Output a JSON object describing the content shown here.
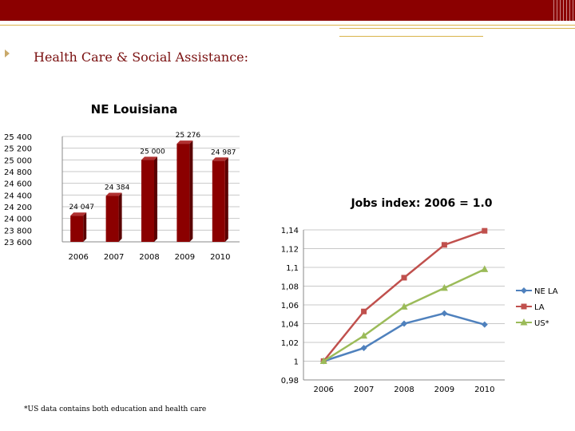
{
  "slide": {
    "title": "Health Care & Social Assistance:",
    "footnote": "*US data contains both education and health care",
    "colors": {
      "banner": "#8b0000",
      "accent": "#d9b34a"
    }
  },
  "chart_data": [
    {
      "type": "bar",
      "title": "NE Louisiana",
      "categories": [
        "2006",
        "2007",
        "2008",
        "2009",
        "2010"
      ],
      "values": [
        24047,
        24384,
        25000,
        25276,
        24987
      ],
      "value_labels": [
        "24 047",
        "24 384",
        "25 000",
        "25 276",
        "24 987"
      ],
      "y_ticks": [
        "23 600",
        "23 800",
        "24 000",
        "24 200",
        "24 400",
        "24 600",
        "24 800",
        "25 000",
        "25 200",
        "25 400"
      ],
      "ylim": [
        23600,
        25400
      ],
      "grid": true,
      "bar_color": "#8b0000"
    },
    {
      "type": "line",
      "title": "Jobs index: 2006 = 1.0",
      "categories": [
        "2006",
        "2007",
        "2008",
        "2009",
        "2010"
      ],
      "y_ticks": [
        "0,98",
        "1",
        "1,02",
        "1,04",
        "1,06",
        "1,08",
        "1,1",
        "1,12",
        "1,14"
      ],
      "ylim": [
        0.98,
        1.14
      ],
      "grid": true,
      "legend": "right",
      "series": [
        {
          "name": "NE LA",
          "values": [
            1.0,
            1.014,
            1.04,
            1.051,
            1.039
          ],
          "color": "#4f81bd",
          "marker": "diamond"
        },
        {
          "name": "LA",
          "values": [
            1.0,
            1.053,
            1.089,
            1.124,
            1.139
          ],
          "color": "#c0504d",
          "marker": "square"
        },
        {
          "name": "US*",
          "values": [
            1.0,
            1.027,
            1.058,
            1.078,
            1.098
          ],
          "color": "#9bbb59",
          "marker": "triangle"
        }
      ]
    }
  ]
}
